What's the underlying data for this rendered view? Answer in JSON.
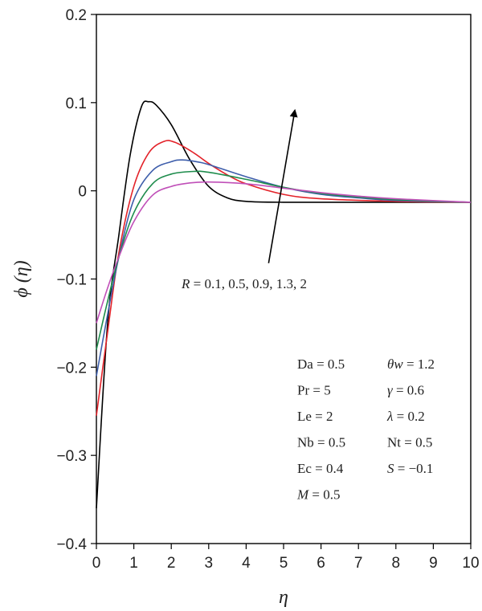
{
  "chart_data": {
    "type": "line",
    "xlabel": "η",
    "ylabel": "ϕ (η)",
    "xlim": [
      0,
      10
    ],
    "ylim": [
      -0.4,
      0.2
    ],
    "x_ticks": [
      "0",
      "1",
      "2",
      "3",
      "4",
      "5",
      "6",
      "7",
      "8",
      "9",
      "10"
    ],
    "y_ticks": [
      "0.2",
      "0.1",
      "0",
      "−0.1",
      "−0.2",
      "−0.3",
      "−0.4"
    ],
    "grid": false,
    "series": [
      {
        "color": "#000000",
        "points": [
          [
            0,
            -0.36
          ],
          [
            0.3,
            -0.15
          ],
          [
            0.6,
            -0.05
          ],
          [
            0.9,
            0.04
          ],
          [
            1.2,
            0.095
          ],
          [
            1.4,
            0.101
          ],
          [
            1.6,
            0.097
          ],
          [
            2.0,
            0.075
          ],
          [
            2.5,
            0.035
          ],
          [
            3.0,
            0.005
          ],
          [
            3.5,
            -0.008
          ],
          [
            4.0,
            -0.012
          ],
          [
            5.0,
            -0.013
          ],
          [
            6.0,
            -0.013
          ],
          [
            10.0,
            -0.013
          ]
        ]
      },
      {
        "color": "#e32229",
        "points": [
          [
            0,
            -0.255
          ],
          [
            0.3,
            -0.16
          ],
          [
            0.6,
            -0.07
          ],
          [
            1.0,
            0.005
          ],
          [
            1.4,
            0.043
          ],
          [
            1.8,
            0.056
          ],
          [
            2.1,
            0.055
          ],
          [
            2.6,
            0.043
          ],
          [
            3.0,
            0.031
          ],
          [
            3.5,
            0.018
          ],
          [
            4.0,
            0.008
          ],
          [
            5.0,
            -0.004
          ],
          [
            6.0,
            -0.009
          ],
          [
            8.0,
            -0.012
          ],
          [
            10.0,
            -0.013
          ]
        ]
      },
      {
        "color": "#3e5eab",
        "points": [
          [
            0,
            -0.21
          ],
          [
            0.3,
            -0.14
          ],
          [
            0.6,
            -0.075
          ],
          [
            1.0,
            -0.01
          ],
          [
            1.5,
            0.023
          ],
          [
            2.0,
            0.033
          ],
          [
            2.3,
            0.035
          ],
          [
            2.8,
            0.032
          ],
          [
            3.2,
            0.027
          ],
          [
            4.0,
            0.016
          ],
          [
            5.0,
            0.004
          ],
          [
            6.0,
            -0.004
          ],
          [
            7.0,
            -0.008
          ],
          [
            8.0,
            -0.011
          ],
          [
            10.0,
            -0.013
          ]
        ]
      },
      {
        "color": "#1e8c4c",
        "points": [
          [
            0,
            -0.18
          ],
          [
            0.3,
            -0.125
          ],
          [
            0.6,
            -0.075
          ],
          [
            1.0,
            -0.025
          ],
          [
            1.5,
            0.008
          ],
          [
            2.0,
            0.019
          ],
          [
            2.6,
            0.022
          ],
          [
            3.0,
            0.021
          ],
          [
            4.0,
            0.013
          ],
          [
            5.0,
            0.004
          ],
          [
            6.0,
            -0.003
          ],
          [
            7.0,
            -0.007
          ],
          [
            8.0,
            -0.01
          ],
          [
            10.0,
            -0.013
          ]
        ]
      },
      {
        "color": "#c04fb8",
        "points": [
          [
            0,
            -0.15
          ],
          [
            0.3,
            -0.11
          ],
          [
            0.6,
            -0.075
          ],
          [
            1.0,
            -0.035
          ],
          [
            1.5,
            -0.005
          ],
          [
            2.0,
            0.005
          ],
          [
            2.5,
            0.009
          ],
          [
            3.0,
            0.01
          ],
          [
            4.0,
            0.008
          ],
          [
            5.0,
            0.003
          ],
          [
            6.0,
            -0.002
          ],
          [
            7.0,
            -0.006
          ],
          [
            8.0,
            -0.009
          ],
          [
            10.0,
            -0.013
          ]
        ]
      }
    ],
    "annotations": {
      "arrow": {
        "from": [
          4.6,
          -0.082
        ],
        "to": [
          5.3,
          0.091
        ]
      },
      "arrow_label": {
        "var": "R",
        "text": " = 0.1, 0.5, 0.9, 1.3, 2"
      },
      "params_left": [
        {
          "var": "",
          "text": "Da = 0.5"
        },
        {
          "var": "",
          "text": "Pr = 5"
        },
        {
          "var": "",
          "text": "Le = 2"
        },
        {
          "var": "",
          "text": "Nb = 0.5"
        },
        {
          "var": "",
          "text": "Ec = 0.4"
        },
        {
          "var": "M",
          "text": " = 0.5"
        }
      ],
      "params_right": [
        {
          "var": "θw",
          "text": " = 1.2"
        },
        {
          "var": "γ",
          "text": " = 0.6"
        },
        {
          "var": "λ",
          "text": " = 0.2"
        },
        {
          "var": "",
          "text": "Nt = 0.5"
        },
        {
          "var": "S",
          "text": " = −0.1"
        }
      ]
    }
  }
}
